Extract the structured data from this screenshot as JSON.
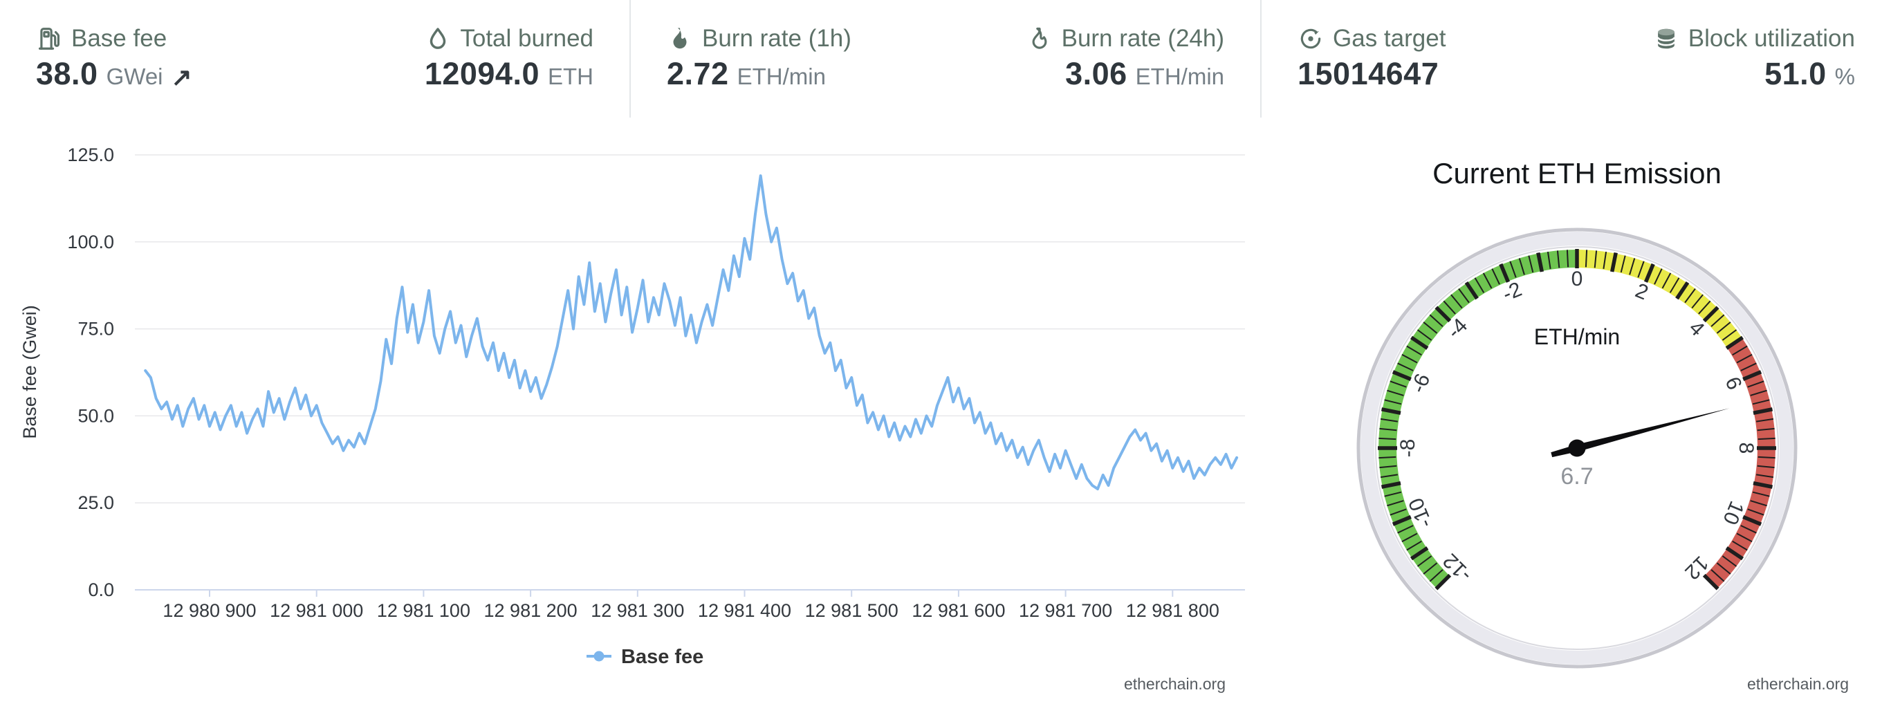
{
  "header": {
    "stats": [
      {
        "id": "base-fee",
        "icon": "gas-pump-icon",
        "label": "Base fee",
        "value": "38.0",
        "unit": "GWei",
        "trend": "↗"
      },
      {
        "id": "total-burned",
        "icon": "droplet-icon",
        "label": "Total burned",
        "value": "12094.0",
        "unit": "ETH"
      },
      {
        "id": "burn-rate-1h",
        "icon": "flame-solid-icon",
        "label": "Burn rate (1h)",
        "value": "2.72",
        "unit": "ETH/min"
      },
      {
        "id": "burn-rate-24h",
        "icon": "flame-outline-icon",
        "label": "Burn rate (24h)",
        "value": "3.06",
        "unit": "ETH/min"
      },
      {
        "id": "gas-target",
        "icon": "target-icon",
        "label": "Gas target",
        "value": "15014647",
        "unit": ""
      },
      {
        "id": "block-utilization",
        "icon": "database-icon",
        "label": "Block utilization",
        "value": "51.0",
        "unit": "%"
      }
    ]
  },
  "chart": {
    "y_axis_title": "Base fee (Gwei)",
    "legend_label": "Base fee",
    "watermark": "etherchain.org",
    "y_ticks": [
      {
        "value": 0,
        "label": "0.0"
      },
      {
        "value": 25,
        "label": "25.0"
      },
      {
        "value": 50,
        "label": "50.0"
      },
      {
        "value": 75,
        "label": "75.0"
      },
      {
        "value": 100,
        "label": "100.0"
      },
      {
        "value": 125,
        "label": "125.0"
      }
    ],
    "x_tick_labels": [
      "12 980 900",
      "12 981 000",
      "12 981 100",
      "12 981 200",
      "12 981 300",
      "12 981 400",
      "12 981 500",
      "12 981 600",
      "12 981 700",
      "12 981 800"
    ]
  },
  "chart_data": {
    "type": "line",
    "title": "",
    "xlabel": "",
    "ylabel": "Base fee (Gwei)",
    "series_name": "Base fee",
    "line_color": "#7cb5ec",
    "ylim": [
      0,
      125
    ],
    "x_start_block": 12980840,
    "x_step_blocks": 5,
    "x_axis_ticks": [
      12980900,
      12981000,
      12981100,
      12981200,
      12981300,
      12981400,
      12981500,
      12981600,
      12981700,
      12981800
    ],
    "values": [
      63,
      61,
      55,
      52,
      54,
      49,
      53,
      47,
      52,
      55,
      49,
      53,
      47,
      51,
      46,
      50,
      53,
      47,
      51,
      45,
      49,
      52,
      47,
      57,
      51,
      55,
      49,
      54,
      58,
      52,
      56,
      50,
      53,
      48,
      45,
      42,
      44,
      40,
      43,
      41,
      45,
      42,
      47,
      52,
      60,
      72,
      65,
      78,
      87,
      74,
      82,
      71,
      77,
      86,
      73,
      68,
      75,
      80,
      71,
      76,
      67,
      73,
      78,
      70,
      66,
      71,
      63,
      68,
      61,
      66,
      58,
      63,
      57,
      61,
      55,
      59,
      64,
      70,
      78,
      86,
      75,
      90,
      82,
      94,
      80,
      88,
      77,
      85,
      92,
      79,
      87,
      74,
      81,
      89,
      77,
      84,
      79,
      88,
      83,
      76,
      84,
      73,
      79,
      71,
      77,
      82,
      76,
      84,
      92,
      86,
      96,
      90,
      101,
      95,
      108,
      119,
      108,
      100,
      104,
      95,
      88,
      91,
      83,
      86,
      78,
      81,
      73,
      68,
      71,
      63,
      66,
      58,
      61,
      53,
      56,
      48,
      51,
      46,
      50,
      44,
      48,
      43,
      47,
      44,
      49,
      45,
      50,
      47,
      53,
      57,
      61,
      54,
      58,
      52,
      55,
      48,
      51,
      45,
      48,
      42,
      45,
      40,
      43,
      38,
      41,
      36,
      40,
      43,
      38,
      34,
      39,
      35,
      40,
      36,
      32,
      36,
      32,
      30,
      29,
      33,
      30,
      35,
      38,
      41,
      44,
      46,
      43,
      45,
      40,
      42,
      37,
      40,
      35,
      38,
      34,
      37,
      32,
      35,
      33,
      36,
      38,
      36,
      39,
      35,
      38
    ]
  },
  "gauge": {
    "title": "Current ETH Emission",
    "unit_label": "ETH/min",
    "value": 6.7,
    "value_display": "6.7",
    "min": -12,
    "max": 12,
    "sweep_degrees": 270,
    "minor_tick_step": 0.25,
    "major_tick_step": 1,
    "label_step": 2,
    "zones": [
      {
        "from": -12,
        "to": 0,
        "color": "#6ec450"
      },
      {
        "from": 0,
        "to": 5,
        "color": "#e8e94a"
      },
      {
        "from": 5,
        "to": 12,
        "color": "#cf5c54"
      }
    ],
    "tick_color": "#1e1e1e",
    "needle_color": "#0d0d0f",
    "watermark": "etherchain.org"
  }
}
